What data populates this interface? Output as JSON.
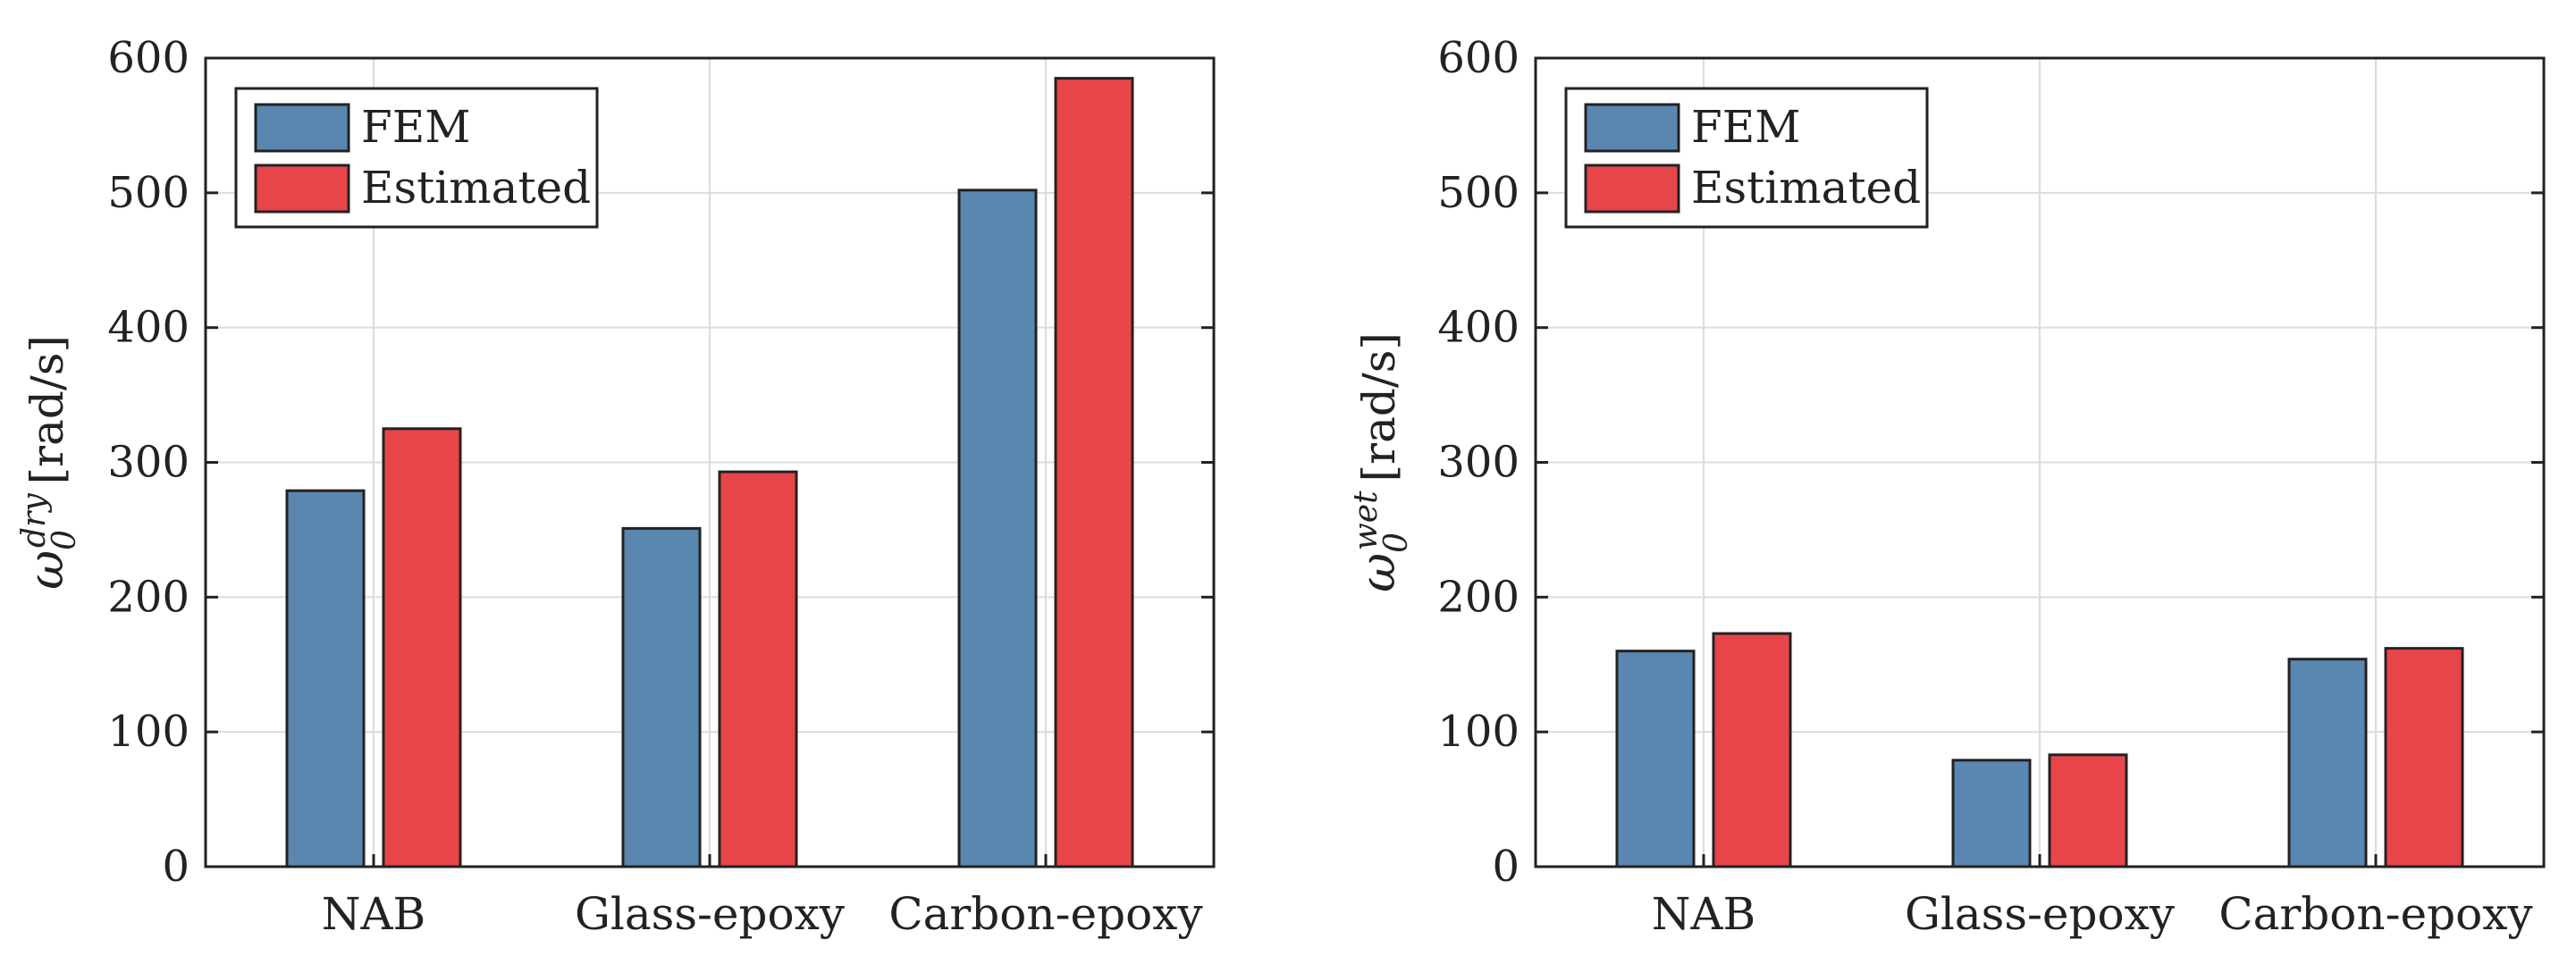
{
  "colors": {
    "fem": "#5A87B0",
    "estimated": "#E8454A",
    "grid": "#dcdcdc",
    "axis": "#222222"
  },
  "chart_data": [
    {
      "type": "bar",
      "categories": [
        "NAB",
        "Glass-epoxy",
        "Carbon-epoxy"
      ],
      "series": [
        {
          "name": "FEM",
          "values": [
            279,
            251,
            502
          ]
        },
        {
          "name": "Estimated",
          "values": [
            325,
            293,
            585
          ]
        }
      ],
      "ylim": [
        0,
        600
      ],
      "yticks": [
        "0",
        "100",
        "200",
        "300",
        "400",
        "500",
        "600"
      ],
      "ylabel_symbol": "ω",
      "ylabel_sub": "0",
      "ylabel_sup": "dry",
      "ylabel_unit": "[rad/s]",
      "legend": [
        "FEM",
        "Estimated"
      ],
      "legend_position": "top-left",
      "grid": true
    },
    {
      "type": "bar",
      "categories": [
        "NAB",
        "Glass-epoxy",
        "Carbon-epoxy"
      ],
      "series": [
        {
          "name": "FEM",
          "values": [
            160,
            79,
            154
          ]
        },
        {
          "name": "Estimated",
          "values": [
            173,
            83,
            162
          ]
        }
      ],
      "ylim": [
        0,
        600
      ],
      "yticks": [
        "0",
        "100",
        "200",
        "300",
        "400",
        "500",
        "600"
      ],
      "ylabel_symbol": "ω",
      "ylabel_sub": "0",
      "ylabel_sup": "wet",
      "ylabel_unit": "[rad/s]",
      "legend": [
        "FEM",
        "Estimated"
      ],
      "legend_position": "top-left",
      "grid": true
    }
  ]
}
